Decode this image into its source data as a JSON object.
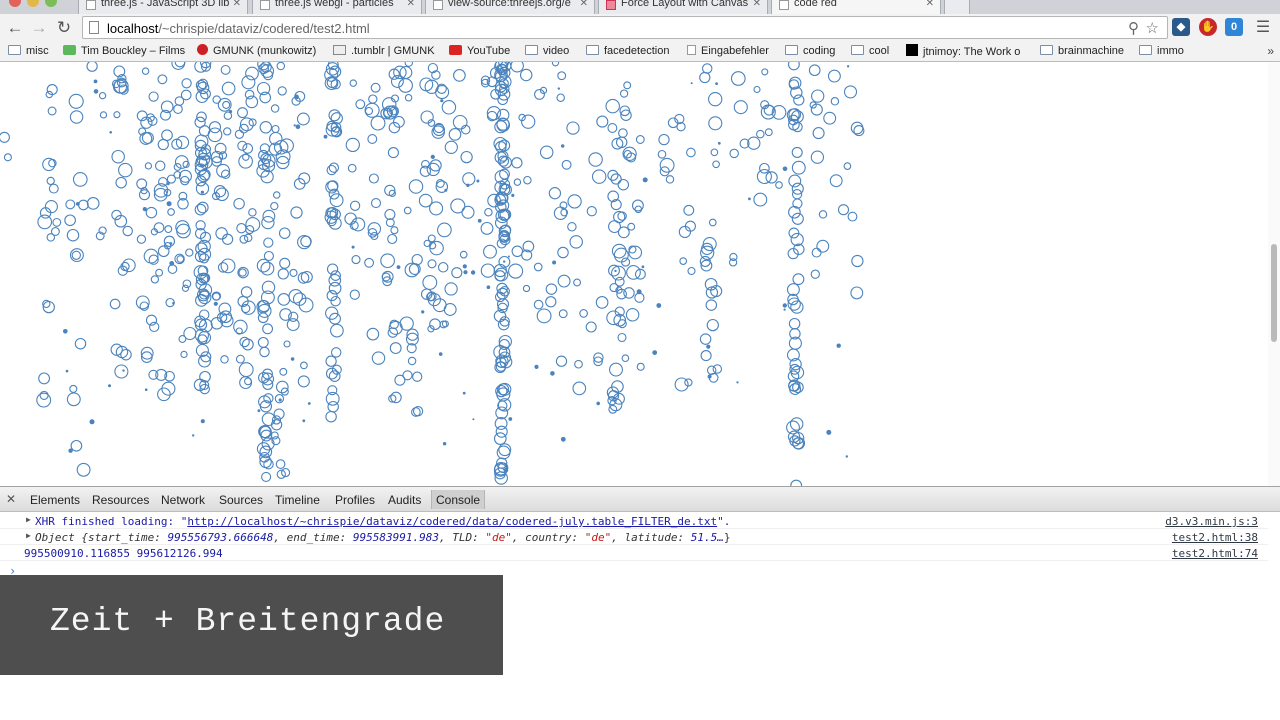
{
  "tabs": [
    {
      "title": "three.js - JavaScript 3D lib"
    },
    {
      "title": "three.js webgl - particles"
    },
    {
      "title": "view-source:threejs.org/e"
    },
    {
      "title": "Force Layout with Canvas"
    },
    {
      "title": "code red"
    }
  ],
  "toolbar": {
    "url_host": "localhost",
    "url_path": "/~chrispie/dataviz/codered/test2.html",
    "ext_badge": "0"
  },
  "bookmarks": [
    {
      "label": "misc",
      "icon": "folder-icon"
    },
    {
      "label": "Tim Bouckley – Films",
      "icon": "puzzle-icon"
    },
    {
      "label": "GMUNK (munkowitz)",
      "icon": "pinterest-icon"
    },
    {
      "label": ".tumblr | GMUNK",
      "icon": "tumblr-icon"
    },
    {
      "label": "YouTube",
      "icon": "youtube-icon"
    },
    {
      "label": "video",
      "icon": "folder-icon"
    },
    {
      "label": "facedetection",
      "icon": "folder-icon"
    },
    {
      "label": "Eingabefehler",
      "icon": "page-icon"
    },
    {
      "label": "coding",
      "icon": "folder-icon"
    },
    {
      "label": "cool",
      "icon": "folder-icon"
    },
    {
      "label": "jtnimoy: The Work o",
      "icon": "black-square-icon"
    },
    {
      "label": "brainmachine",
      "icon": "folder-icon"
    },
    {
      "label": "immo",
      "icon": "folder-icon"
    }
  ],
  "devtools": {
    "tabs": [
      "Elements",
      "Resources",
      "Network",
      "Sources",
      "Timeline",
      "Profiles",
      "Audits",
      "Console"
    ],
    "active_tab": "Console"
  },
  "console": {
    "line1": {
      "prefix": "XHR finished loading: \"",
      "url": "http://localhost/~chrispie/dataviz/codered/data/codered-july.table_FILTER_de.txt",
      "suffix": "\".",
      "source": "d3.v3.min.js:3"
    },
    "line2": {
      "label": "Object {start_time: ",
      "start_time": "995556793.666648",
      "sep1": ", end_time: ",
      "end_time": "995583991.983",
      "sep2": ", TLD: ",
      "tld": "\"de\"",
      "sep3": ", country: ",
      "country": "\"de\"",
      "sep4": ", latitude: ",
      "latitude": "51.5…",
      "close": "}",
      "source": "test2.html:38"
    },
    "line3": {
      "text": "995500910.116855 995612126.994",
      "source": "test2.html:74"
    }
  },
  "caption": {
    "text": "Zeit + Breitengrade"
  },
  "colors": {
    "circle_stroke": "#4a83bd",
    "caption_bg": "#4e4e4e"
  }
}
